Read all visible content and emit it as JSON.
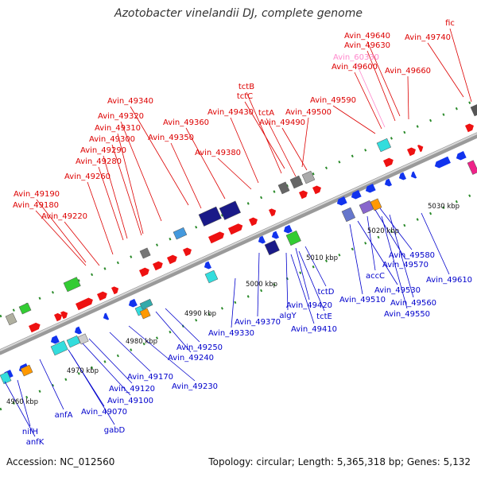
{
  "title": "Azotobacter vinelandii DJ, complete genome",
  "footer": {
    "accession": "Accession: NC_012560",
    "summary": "Topology: circular; Length: 5,365,318 bp; Genes: 5,132"
  },
  "kbp_ticks": [
    "4960 kbp",
    "4970 kbp",
    "4980 kbp",
    "4990 kbp",
    "5000 kbp",
    "5010 kbp",
    "5020 kbp",
    "5030 kbp"
  ],
  "colors": {
    "forward_gene": "#ee1111",
    "reverse_gene": "#1133ee",
    "forward_label": "#dd0000",
    "reverse_label": "#0000cc",
    "pseudo_label": "#ff88cc",
    "backbone": "#888888",
    "tick": "#228822"
  },
  "top_labels": [
    "fic",
    "Avin_49740",
    "Avin_49640",
    "Avin_49630",
    "Avin_60330",
    "Avin_49600",
    "Avin_49660",
    "tctB",
    "tctC",
    "Avin_49590",
    "Avin_49340",
    "Avin_49430",
    "tctA",
    "Avin_49500",
    "Avin_49320",
    "Avin_49490",
    "Avin_49360",
    "Avin_49310",
    "Avin_49300",
    "Avin_49350",
    "Avin_49290",
    "Avin_49280",
    "Avin_49380",
    "Avin_49260",
    "Avin_49190",
    "Avin_49180",
    "Avin_49220"
  ],
  "bottom_labels": [
    "Avin_49580",
    "Avin_49570",
    "accC",
    "Avin_49610",
    "Avin_49530",
    "Avin_49510",
    "Avin_49560",
    "Avin_49550",
    "tctD",
    "Avin_49420",
    "algY",
    "tctE",
    "Avin_49410",
    "Avin_49370",
    "Avin_49330",
    "Avin_49250",
    "Avin_49240",
    "Avin_49230",
    "Avin_49170",
    "Avin_49120",
    "Avin_49100",
    "Avin_49070",
    "anfA",
    "gabD",
    "nifH",
    "anfK"
  ]
}
